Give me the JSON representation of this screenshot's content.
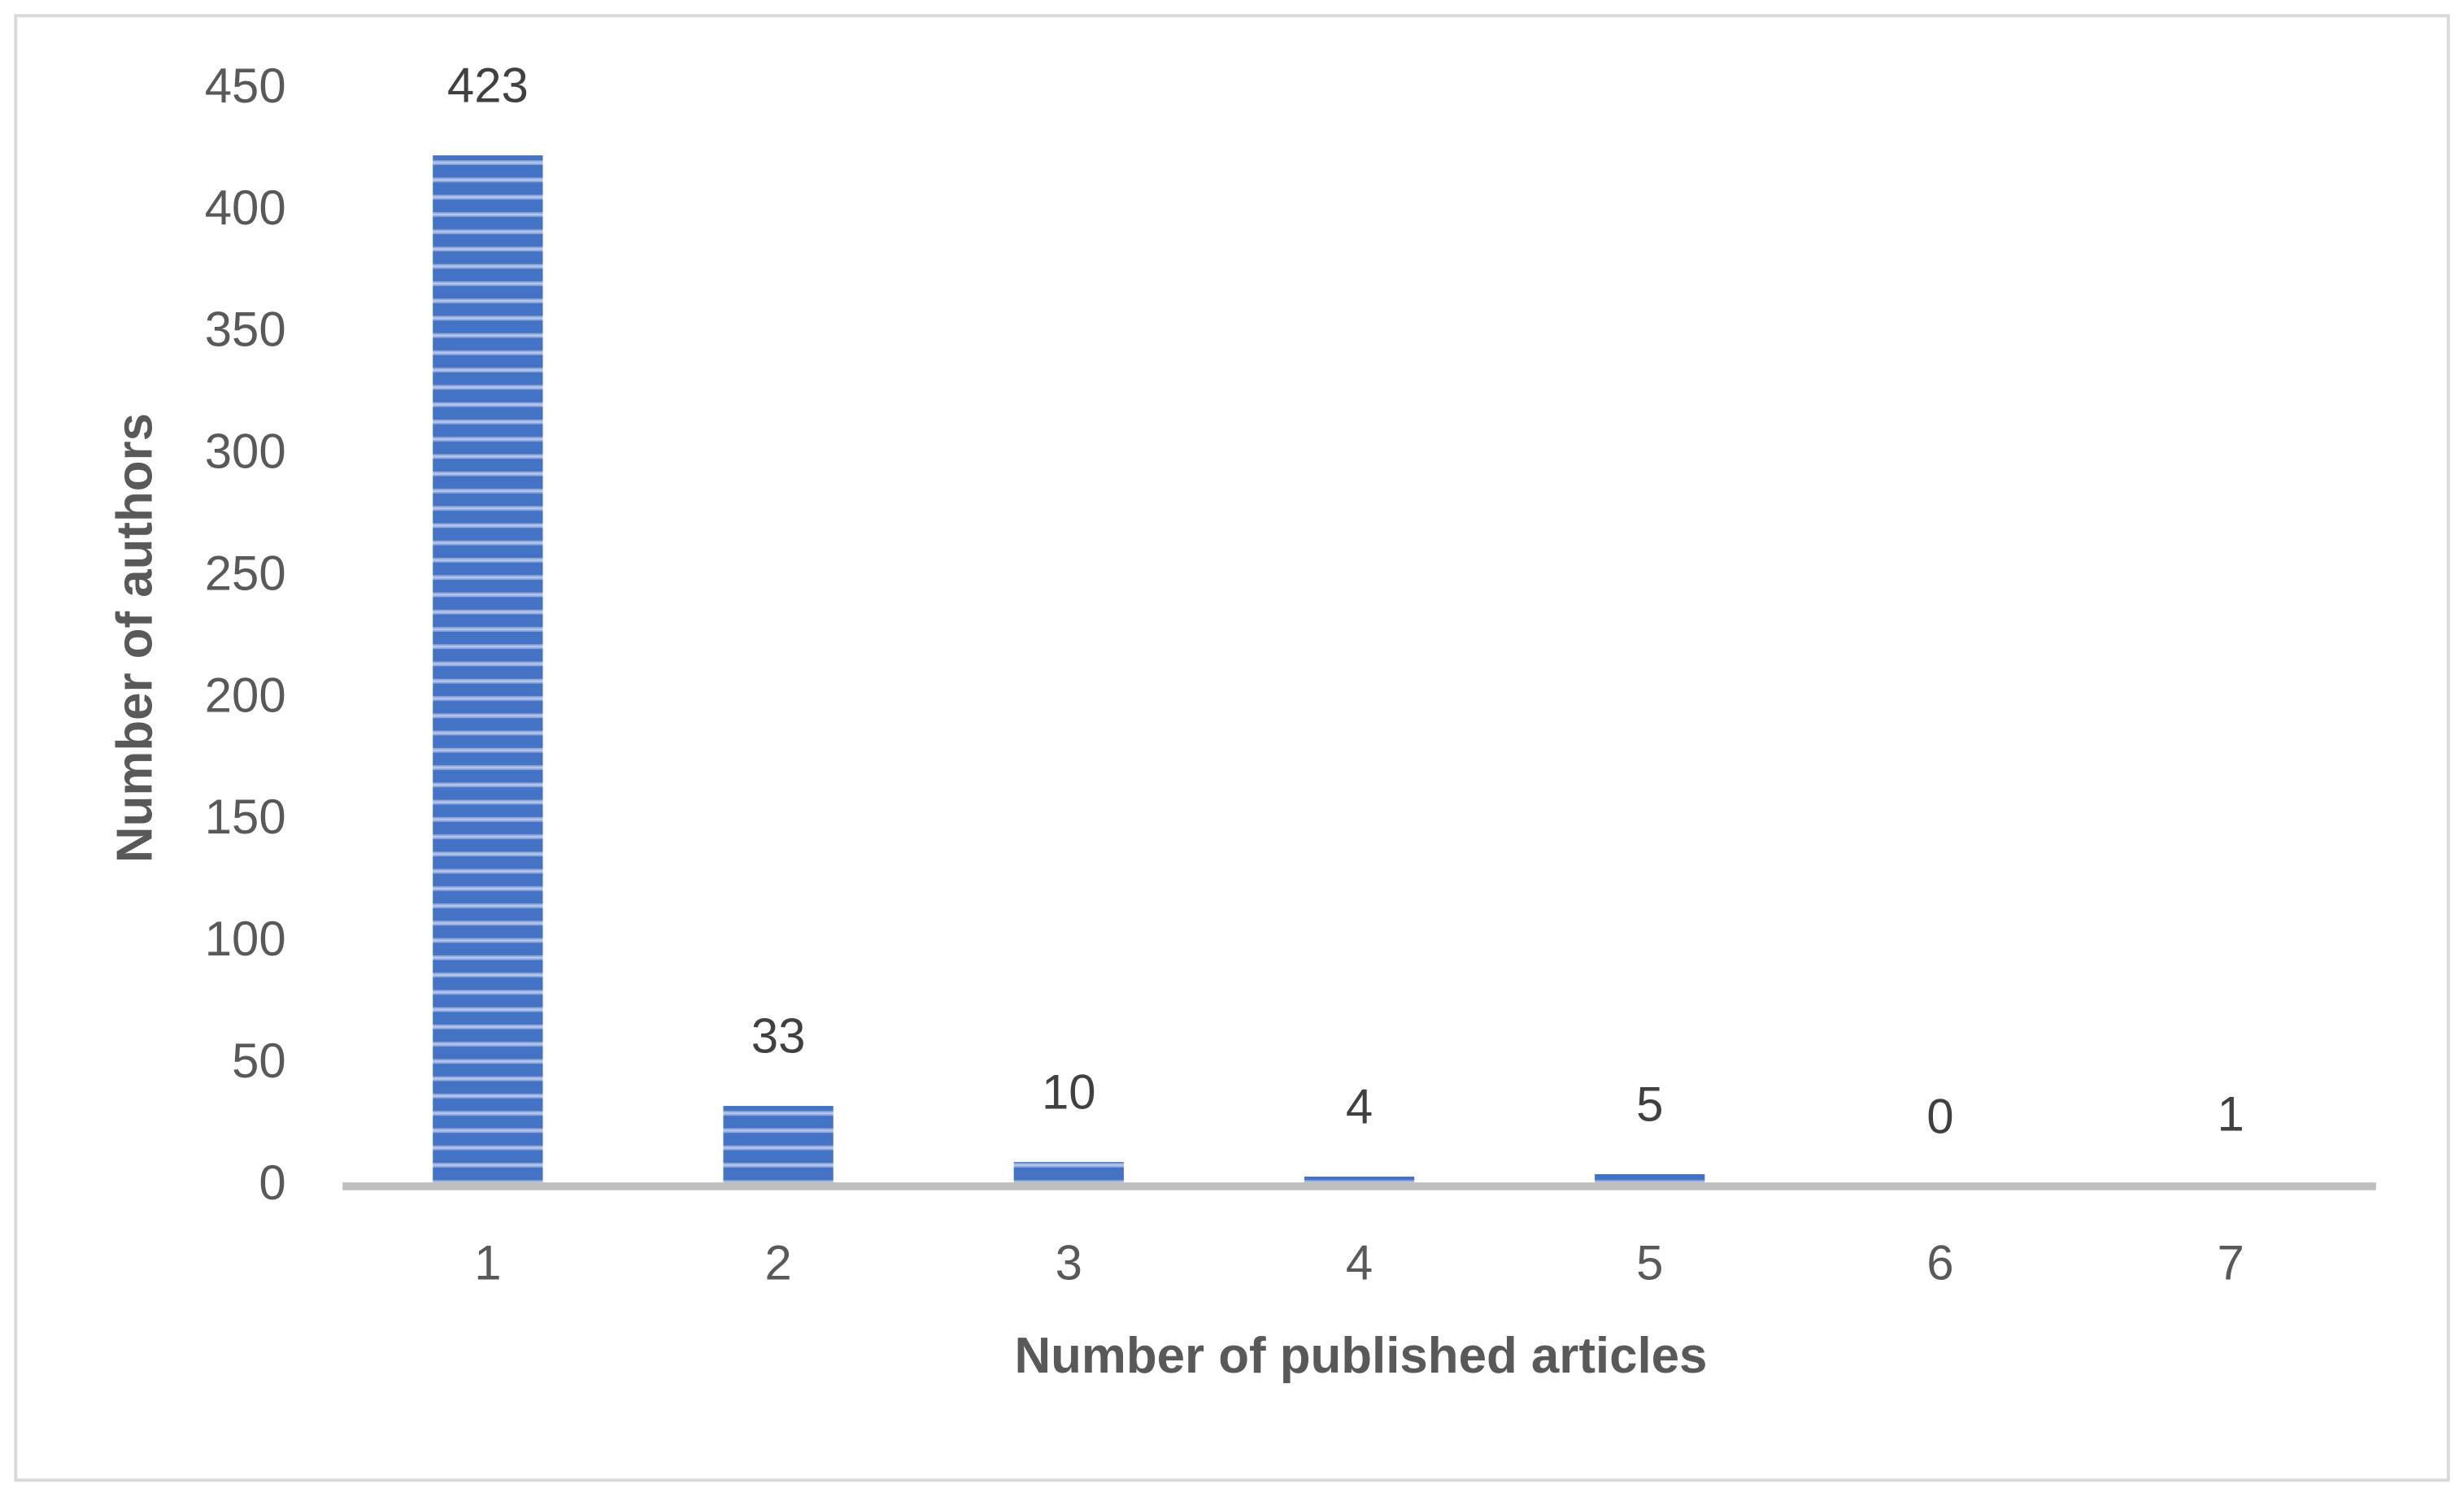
{
  "chart_data": {
    "type": "bar",
    "x_label": "Number of published articles",
    "y_label": "Number of authors",
    "categories": [
      "1",
      "2",
      "3",
      "4",
      "5",
      "6",
      "7"
    ],
    "values": [
      423,
      33,
      10,
      4,
      5,
      0,
      1
    ],
    "color": "#4472c4",
    "ylim": [
      0,
      450
    ],
    "yticks": [
      0,
      50,
      100,
      150,
      200,
      250,
      300,
      350,
      400,
      450
    ],
    "grid": false
  }
}
